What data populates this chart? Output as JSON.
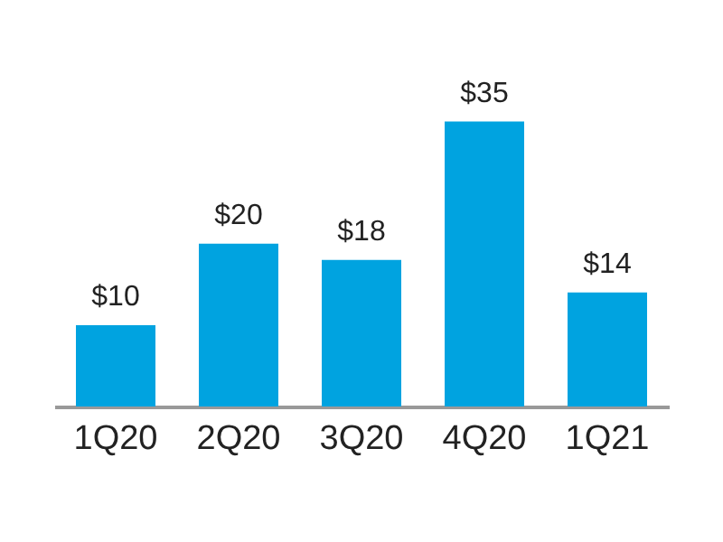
{
  "chart_data": {
    "type": "bar",
    "categories": [
      "1Q20",
      "2Q20",
      "3Q20",
      "4Q20",
      "1Q21"
    ],
    "values": [
      10,
      20,
      18,
      35,
      14
    ],
    "value_labels": [
      "$10",
      "$20",
      "$18",
      "$35",
      "$14"
    ],
    "color": "#00a3e0",
    "grid": false
  }
}
